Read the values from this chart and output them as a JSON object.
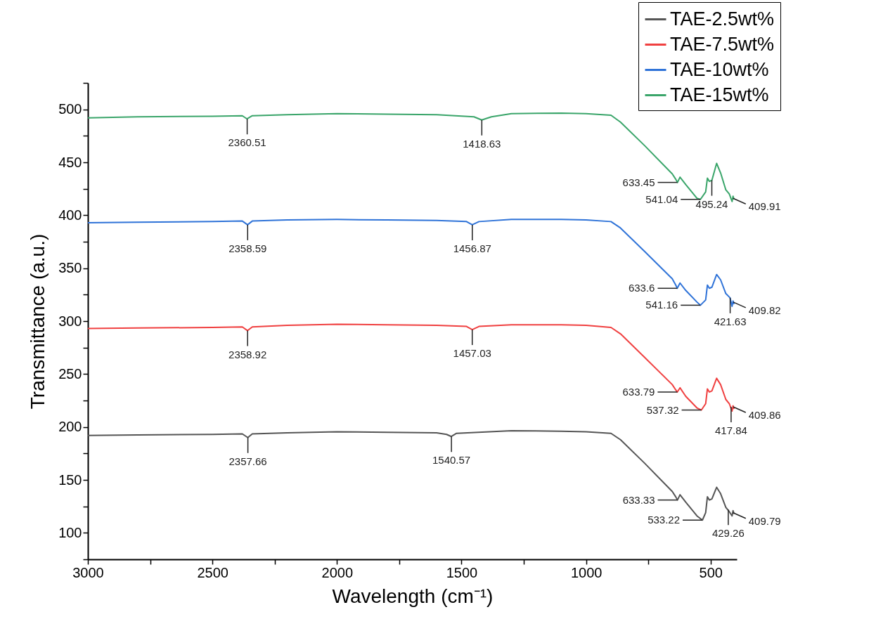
{
  "chart_data": {
    "type": "line",
    "xlabel": "Wavelength (cm⁻¹)",
    "ylabel": "Transmittance (a.u.)",
    "xlim": [
      3000,
      395
    ],
    "ylim": [
      75,
      525
    ],
    "xticks": [
      3000,
      {
        "value": 2750,
        "label": null
      },
      2500,
      {
        "value": 2250,
        "label": null
      },
      2000,
      {
        "value": 1750,
        "label": null
      },
      1500,
      {
        "value": 1250,
        "label": null
      },
      1000,
      {
        "value": 750,
        "label": null
      },
      500
    ],
    "yticks": [
      {
        "value": 75,
        "label": null
      },
      100,
      {
        "value": 125,
        "label": null
      },
      150,
      {
        "value": 175,
        "label": null
      },
      200,
      {
        "value": 225,
        "label": null
      },
      250,
      {
        "value": 275,
        "label": null
      },
      300,
      {
        "value": 325,
        "label": null
      },
      350,
      {
        "value": 375,
        "label": null
      },
      400,
      {
        "value": 425,
        "label": null
      },
      450,
      {
        "value": 475,
        "label": null
      },
      500,
      {
        "value": 525,
        "label": null
      }
    ],
    "grid": false,
    "legend": "top right",
    "line_style": "solid",
    "marker": "none",
    "series": [
      {
        "name": "TAE-2.5wt%",
        "color": "#555555",
        "x": [
          3000,
          2800,
          2500,
          2380,
          2358,
          2340,
          2200,
          2000,
          1800,
          1600,
          1560,
          1541,
          1520,
          1300,
          1100,
          1000,
          900,
          862,
          766,
          654,
          640,
          633,
          623,
          600,
          555,
          533,
          520,
          513,
          505,
          495,
          476,
          460,
          439,
          425,
          414,
          410,
          406
        ],
        "values": [
          192,
          192.5,
          193,
          193.5,
          190,
          193.5,
          194.5,
          195.5,
          195,
          194.5,
          193,
          191,
          194,
          196.5,
          196,
          195.5,
          194,
          188,
          166,
          139,
          134,
          131,
          136,
          129,
          116,
          112,
          119,
          134,
          131,
          132,
          143,
          137,
          124,
          120,
          116,
          121,
          118
        ]
      },
      {
        "name": "TAE-7.5wt%",
        "color": "#f04040",
        "x": [
          3000,
          2800,
          2500,
          2380,
          2359,
          2340,
          2200,
          2000,
          1800,
          1600,
          1480,
          1457,
          1430,
          1300,
          1100,
          1000,
          900,
          862,
          766,
          654,
          640,
          634,
          623,
          600,
          555,
          537,
          520,
          513,
          505,
          495,
          476,
          460,
          439,
          425,
          414,
          410,
          406
        ],
        "values": [
          293,
          293.5,
          294,
          294.5,
          291,
          294.5,
          296,
          297,
          296.5,
          296,
          295,
          292,
          295,
          296.5,
          296.5,
          296,
          294,
          288,
          266,
          240,
          235,
          233,
          237,
          229,
          218,
          216,
          222,
          236,
          233,
          234,
          246,
          240,
          226,
          222,
          215,
          220,
          217
        ]
      },
      {
        "name": "TAE-10wt%",
        "color": "#2f73d8",
        "x": [
          3000,
          2800,
          2500,
          2380,
          2359,
          2340,
          2200,
          2000,
          1800,
          1600,
          1480,
          1457,
          1430,
          1300,
          1100,
          1000,
          900,
          862,
          766,
          654,
          640,
          634,
          623,
          600,
          555,
          541,
          520,
          513,
          505,
          495,
          476,
          460,
          439,
          422,
          414,
          410,
          406
        ],
        "values": [
          393,
          393.5,
          394,
          394.5,
          391,
          394.5,
          395.5,
          396,
          395.5,
          395,
          394,
          391,
          394,
          396,
          396,
          395.5,
          394,
          388,
          366,
          340,
          334,
          331,
          336,
          329,
          318,
          315,
          320,
          334,
          331,
          332,
          344,
          339,
          326,
          322,
          314,
          319,
          316
        ]
      },
      {
        "name": "TAE-15wt%",
        "color": "#3aa56a",
        "x": [
          3000,
          2800,
          2500,
          2380,
          2361,
          2340,
          2200,
          2000,
          1800,
          1600,
          1450,
          1419,
          1380,
          1300,
          1100,
          1000,
          900,
          862,
          766,
          654,
          640,
          633,
          623,
          600,
          555,
          541,
          520,
          513,
          505,
          495,
          476,
          460,
          439,
          425,
          414,
          410,
          406
        ],
        "values": [
          492,
          493,
          493.5,
          494,
          491,
          494,
          495,
          496,
          495.5,
          495,
          493,
          490,
          493,
          496,
          496.5,
          496,
          494.5,
          488,
          466,
          439,
          434,
          431,
          436,
          429,
          416,
          415,
          422,
          435,
          432,
          433,
          449,
          440,
          424,
          420,
          413,
          418,
          415
        ]
      }
    ],
    "annotations": [
      {
        "text": "2360.51",
        "x": 2360.51,
        "y": 491
      },
      {
        "text": "1418.63",
        "x": 1418.63,
        "y": 490
      },
      {
        "text": "633.45",
        "x": 633.45,
        "y": 431
      },
      {
        "text": "541.04",
        "x": 541.04,
        "y": 415
      },
      {
        "text": "495.24",
        "x": 495.24,
        "y": 433
      },
      {
        "text": "409.91",
        "x": 409.91,
        "y": 416
      },
      {
        "text": "2358.59",
        "x": 2358.59,
        "y": 391
      },
      {
        "text": "1456.87",
        "x": 1456.87,
        "y": 391
      },
      {
        "text": "633.6",
        "x": 633.6,
        "y": 331
      },
      {
        "text": "541.16",
        "x": 541.16,
        "y": 315
      },
      {
        "text": "421.63",
        "x": 421.63,
        "y": 322
      },
      {
        "text": "409.82",
        "x": 409.82,
        "y": 318
      },
      {
        "text": "2358.92",
        "x": 2358.92,
        "y": 291
      },
      {
        "text": "1457.03",
        "x": 1457.03,
        "y": 292
      },
      {
        "text": "633.79",
        "x": 633.79,
        "y": 233
      },
      {
        "text": "537.32",
        "x": 537.32,
        "y": 216
      },
      {
        "text": "417.84",
        "x": 417.84,
        "y": 219
      },
      {
        "text": "409.86",
        "x": 409.86,
        "y": 219
      },
      {
        "text": "2357.66",
        "x": 2357.66,
        "y": 190
      },
      {
        "text": "1540.57",
        "x": 1540.57,
        "y": 191
      },
      {
        "text": "633.33",
        "x": 633.33,
        "y": 131
      },
      {
        "text": "533.22",
        "x": 533.22,
        "y": 112
      },
      {
        "text": "429.26",
        "x": 429.26,
        "y": 122
      },
      {
        "text": "409.79",
        "x": 409.79,
        "y": 119
      }
    ]
  }
}
